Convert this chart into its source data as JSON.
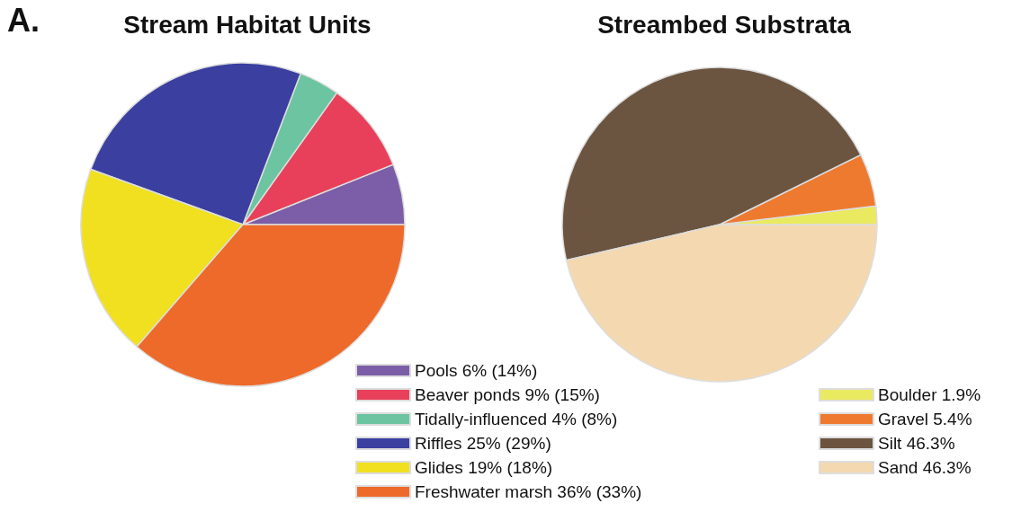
{
  "chart_data": [
    {
      "type": "pie",
      "title": "Stream Habitat Units",
      "annotations": [
        "A."
      ],
      "legend": "bottom right",
      "categories": [
        "Pools 6% (14%)",
        "Beaver ponds 9% (15%)",
        "Tidally-influenced 4% (8%)",
        "Riffles 25% (29%)",
        "Glides 19% (18%)",
        "Freshwater marsh 36% (33%)"
      ],
      "values": [
        6,
        9,
        4,
        25,
        19,
        36
      ],
      "colors": [
        "#7b5ea7",
        "#e8405a",
        "#6cc4a0",
        "#3a3fa0",
        "#f0e020",
        "#ee6a2a"
      ]
    },
    {
      "type": "pie",
      "title": "Streambed Substrata",
      "legend": "bottom right",
      "categories": [
        "Boulder 1.9%",
        "Gravel 5.4%",
        "Silt 46.3%",
        "Sand 46.3%"
      ],
      "values": [
        1.9,
        5.4,
        46.3,
        46.3
      ],
      "colors": [
        "#eaea60",
        "#ee7a30",
        "#6b5540",
        "#f4d8b0"
      ]
    }
  ]
}
